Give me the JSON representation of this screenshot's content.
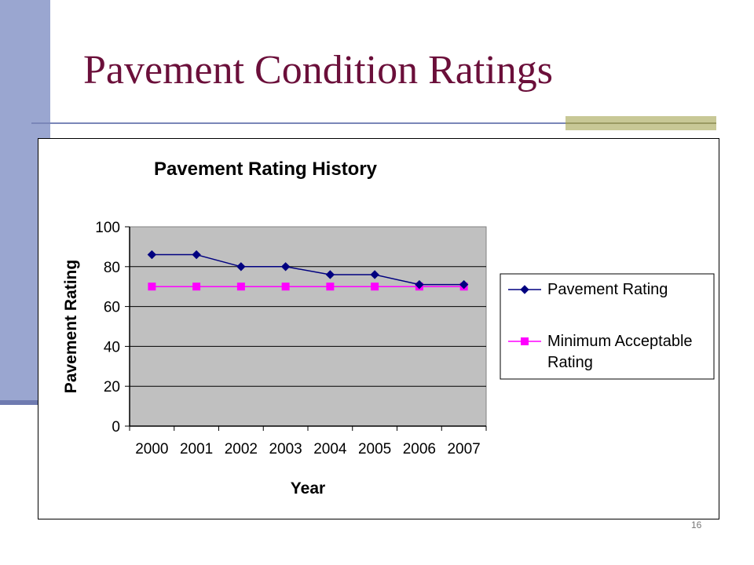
{
  "slide": {
    "title": "Pavement Condition Ratings",
    "slide_number": "16"
  },
  "colors": {
    "title": "#6b0f3a",
    "sidebar": "#9aa6d0",
    "accent": "#c8c896",
    "plot_background": "#c0c0c0",
    "series_rating": "#000080",
    "series_minimum": "#ff00ff"
  },
  "chart_data": {
    "type": "line",
    "title": "Pavement Rating History",
    "xlabel": "Year",
    "ylabel": "Pavement Rating",
    "categories": [
      "2000",
      "2001",
      "2002",
      "2003",
      "2004",
      "2005",
      "2006",
      "2007"
    ],
    "ylim": [
      0,
      100
    ],
    "yticks": [
      0,
      20,
      40,
      60,
      80,
      100
    ],
    "grid": true,
    "legend_position": "right",
    "series": [
      {
        "name": "Pavement Rating",
        "marker": "diamond",
        "values": [
          86,
          86,
          80,
          80,
          76,
          76,
          71,
          71
        ]
      },
      {
        "name": "Minimum Acceptable Rating",
        "marker": "square",
        "values": [
          70,
          70,
          70,
          70,
          70,
          70,
          70,
          70
        ]
      }
    ]
  }
}
